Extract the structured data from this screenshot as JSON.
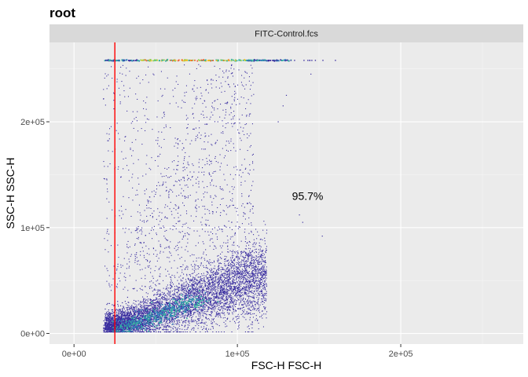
{
  "chart_data": {
    "type": "scatter",
    "title": "root",
    "facet_label": "FITC-Control.fcs",
    "xlabel": "FSC-H FSC-H",
    "ylabel": "SSC-H SSC-H",
    "xlim": [
      -15000,
      275000
    ],
    "ylim": [
      -10000,
      275000
    ],
    "x_ticks": [
      {
        "value": 0,
        "label": "0e+00"
      },
      {
        "value": 100000,
        "label": "1e+05"
      },
      {
        "value": 200000,
        "label": "2e+05"
      }
    ],
    "y_ticks": [
      {
        "value": 0,
        "label": "0e+00"
      },
      {
        "value": 100000,
        "label": "1e+05"
      },
      {
        "value": 200000,
        "label": "2e+05"
      }
    ],
    "gate": {
      "type": "vertical_line",
      "x": 25000,
      "color": "#ff0000"
    },
    "annotation": {
      "text": "95.7%",
      "x": 143000,
      "y": 130000
    },
    "saturation_y": 258000,
    "grid": true,
    "point_color": "#3a2ea0",
    "density_colors": [
      "#3a2ea0",
      "#2e7fb8",
      "#35b5a0",
      "#8fd14f",
      "#f0c020",
      "#f06030"
    ],
    "background_color": "#ebebeb",
    "strip_color": "#d9d9d9"
  }
}
